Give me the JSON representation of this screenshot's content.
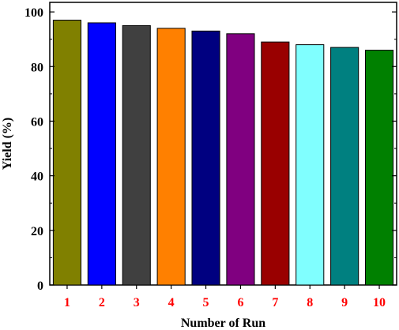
{
  "chart_data": {
    "type": "bar",
    "categories": [
      "1",
      "2",
      "3",
      "4",
      "5",
      "6",
      "7",
      "8",
      "9",
      "10"
    ],
    "values": [
      97,
      96,
      95,
      94,
      93,
      92,
      89,
      88,
      87,
      86
    ],
    "bar_colors": [
      "#808000",
      "#0000ff",
      "#404040",
      "#ff8000",
      "#000080",
      "#800080",
      "#990000",
      "#80ffff",
      "#008080",
      "#008000"
    ],
    "title": "",
    "xlabel": "Number of Run",
    "ylabel": "Yield (%)",
    "ylim": [
      0,
      100
    ],
    "yticks": [
      "0",
      "20",
      "40",
      "60",
      "80",
      "100"
    ],
    "x_tick_color": "#ff0000",
    "y_tick_color": "#000000",
    "grid": false,
    "legend": "none"
  }
}
